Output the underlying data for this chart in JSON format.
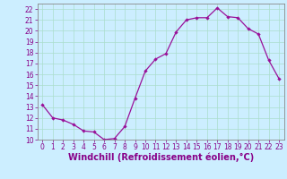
{
  "x": [
    0,
    1,
    2,
    3,
    4,
    5,
    6,
    7,
    8,
    9,
    10,
    11,
    12,
    13,
    14,
    15,
    16,
    17,
    18,
    19,
    20,
    21,
    22,
    23
  ],
  "y": [
    13.2,
    12.0,
    11.8,
    11.4,
    10.8,
    10.7,
    10.0,
    10.1,
    11.2,
    13.8,
    16.3,
    17.4,
    17.9,
    19.9,
    21.0,
    21.2,
    21.2,
    22.1,
    21.3,
    21.2,
    20.2,
    19.7,
    17.3,
    15.6
  ],
  "line_color": "#991199",
  "marker": "D",
  "marker_size": 2.2,
  "bg_color": "#cceeff",
  "grid_color": "#aaddcc",
  "xlabel": "Windchill (Refroidissement éolien,°C)",
  "xlim": [
    -0.5,
    23.5
  ],
  "ylim": [
    10,
    22.5
  ],
  "yticks": [
    10,
    11,
    12,
    13,
    14,
    15,
    16,
    17,
    18,
    19,
    20,
    21,
    22
  ],
  "xticks": [
    0,
    1,
    2,
    3,
    4,
    5,
    6,
    7,
    8,
    9,
    10,
    11,
    12,
    13,
    14,
    15,
    16,
    17,
    18,
    19,
    20,
    21,
    22,
    23
  ],
  "tick_fontsize": 5.5,
  "xlabel_fontsize": 7.0,
  "label_color": "#880088",
  "spine_color": "#888888"
}
